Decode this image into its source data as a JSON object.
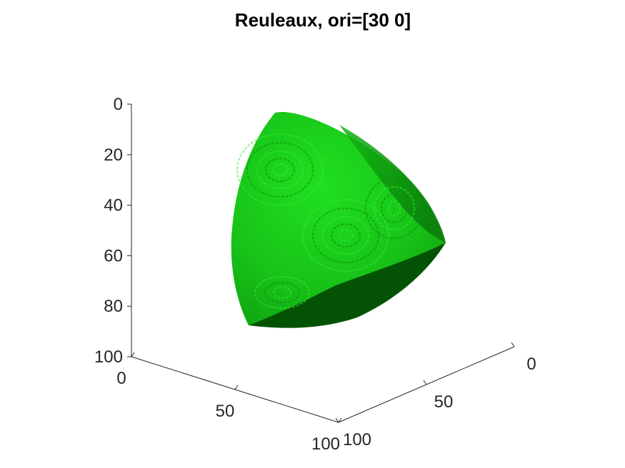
{
  "chart_data": {
    "type": "3d-voxel-surface",
    "title": "Reuleaux, ori=[30 0]",
    "colors": {
      "face_light": "#1cd61c",
      "face_mid": "#14bb14",
      "face_shadow": "#0a8c0a",
      "face_dark": "#045304",
      "edge_highlight": "#33ee33",
      "axis": "#262626"
    },
    "axes": {
      "vertical": {
        "ticks": [
          "0",
          "20",
          "40",
          "60",
          "80",
          "100"
        ],
        "lim": [
          0,
          100
        ],
        "direction": "reversed"
      },
      "left_depth": {
        "ticks": [
          "0",
          "50",
          "100"
        ],
        "lim": [
          0,
          100
        ]
      },
      "right_depth": {
        "ticks": [
          "0",
          "50",
          "100"
        ],
        "lim": [
          0,
          100
        ]
      }
    },
    "grid": false,
    "legend": "none"
  }
}
